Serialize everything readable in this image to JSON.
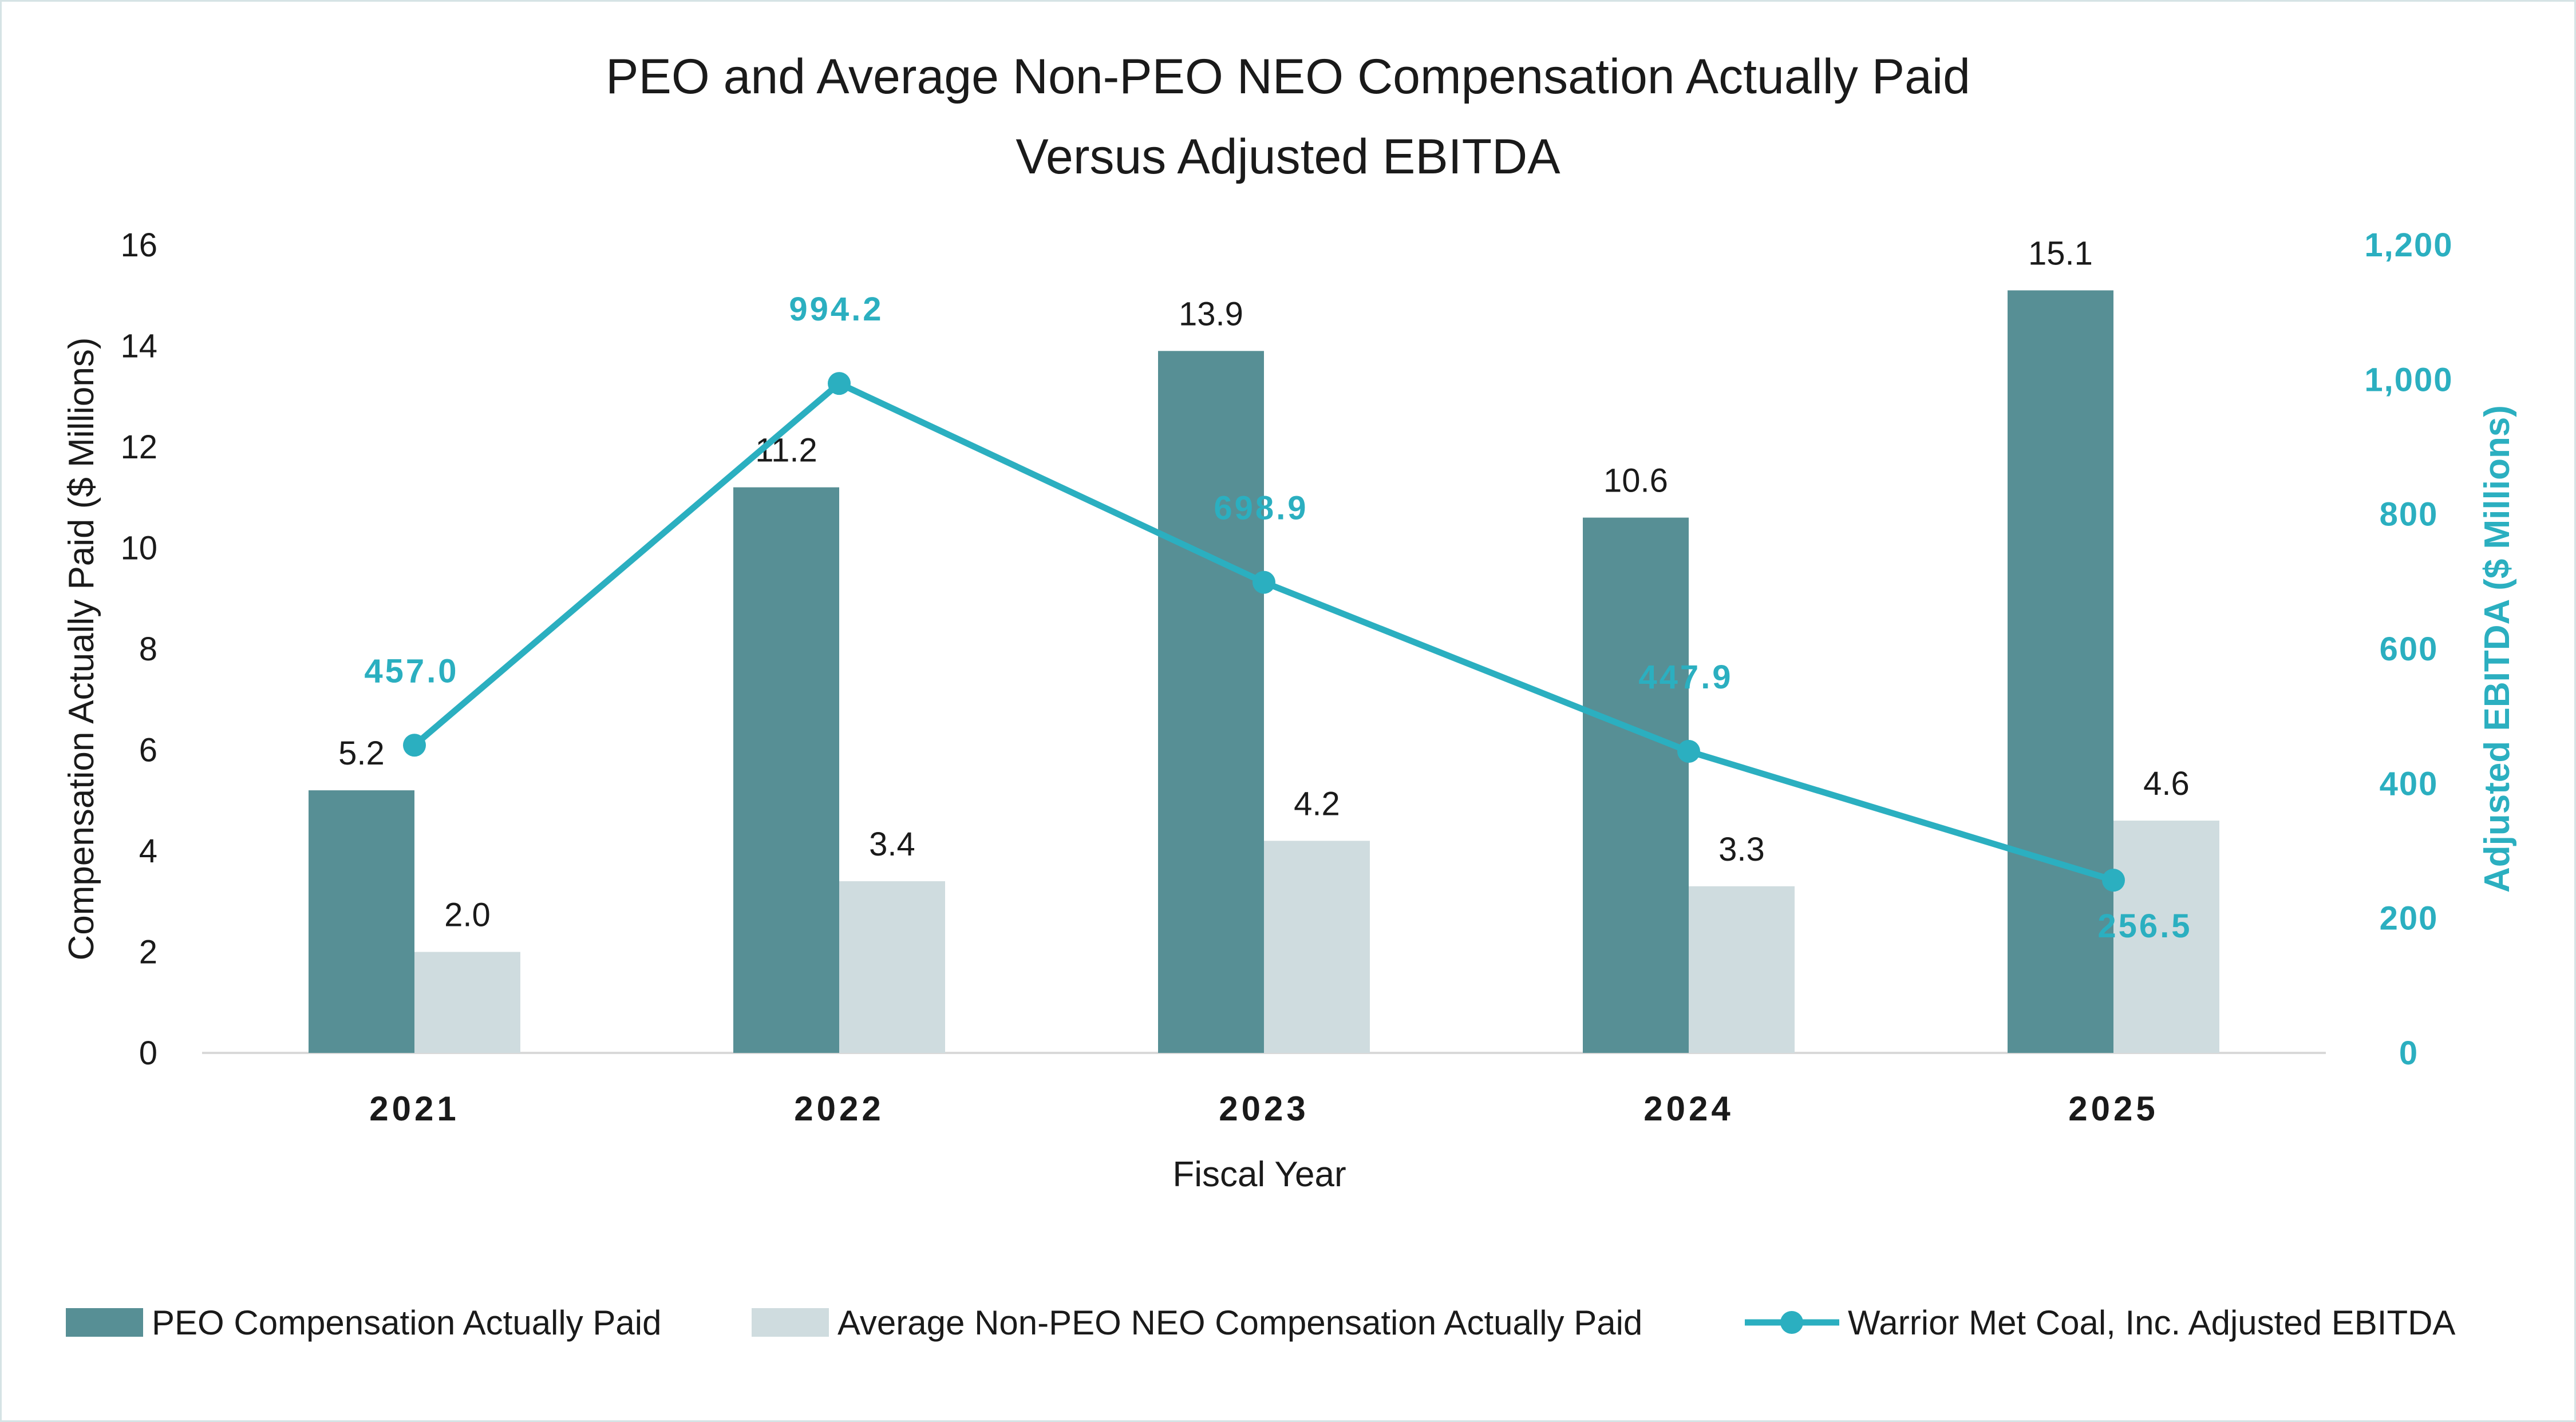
{
  "chart_data": {
    "type": "bar",
    "title_lines": [
      "PEO and Average Non-PEO NEO Compensation Actually Paid",
      "Versus Adjusted EBITDA"
    ],
    "categories": [
      "2021",
      "2022",
      "2023",
      "2024",
      "2025"
    ],
    "xlabel": "Fiscal Year",
    "ylabel": "Compensation Actually Paid ($ Millions)",
    "ylabel_right": "Adjusted EBITDA ($ Millions)",
    "ylim": [
      0,
      16
    ],
    "ylim_right": [
      0,
      1200
    ],
    "yticks": [
      "0",
      "2",
      "4",
      "6",
      "8",
      "10",
      "12",
      "14",
      "16"
    ],
    "yticks_right": [
      "0",
      "200",
      "400",
      "600",
      "800",
      "1,000",
      "1,200"
    ],
    "series": [
      {
        "name": "PEO Compensation Actually Paid",
        "type": "bar",
        "axis": "left",
        "color": "#578f95",
        "values": [
          5.2,
          11.2,
          13.9,
          10.6,
          15.1
        ],
        "labels": [
          "5.2",
          "11.2",
          "13.9",
          "10.6",
          "15.1"
        ]
      },
      {
        "name": "Average Non-PEO NEO Compensation Actually Paid",
        "type": "bar",
        "axis": "left",
        "color": "#cfdcdf",
        "values": [
          2.0,
          3.4,
          4.2,
          3.3,
          4.6
        ],
        "labels": [
          "2.0",
          "3.4",
          "4.2",
          "3.3",
          "4.6"
        ]
      },
      {
        "name": "Warrior Met Coal, Inc. Adjusted EBITDA",
        "type": "line",
        "axis": "right",
        "color": "#2bafc0",
        "values": [
          457.0,
          994.2,
          698.9,
          447.9,
          256.5
        ],
        "labels": [
          "457.0",
          "994.2",
          "698.9",
          "447.9",
          "256.5"
        ]
      }
    ],
    "grid": false,
    "legend": "bottom"
  }
}
